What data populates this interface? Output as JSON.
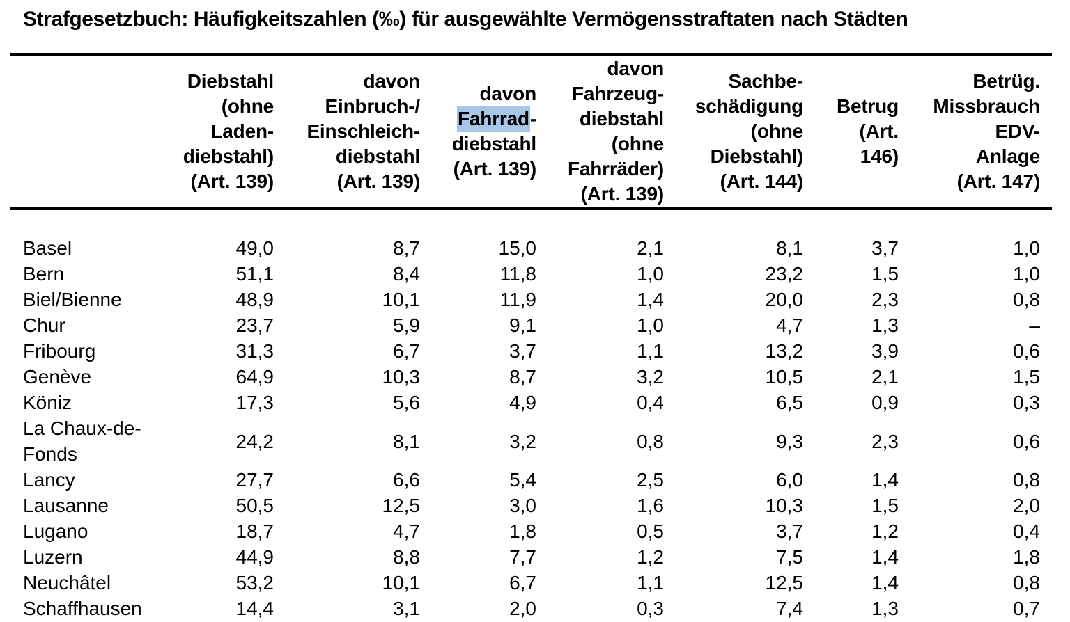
{
  "title": "Strafgesetzbuch: Häufigkeitszahlen (‰) für ausgewählte Vermögensstraftaten nach Städten",
  "highlight_color": "#a8c7e8",
  "table": {
    "unit": "‰",
    "columns": [
      {
        "id": "city",
        "lines": []
      },
      {
        "id": "diebstahl",
        "lines": [
          "Diebstahl",
          "(ohne",
          "Laden-",
          "diebstahl)",
          "(Art. 139)"
        ]
      },
      {
        "id": "einbruch-einschleich-diebstahl",
        "lines": [
          "davon",
          "Einbruch-/",
          "Einschleich-",
          "diebstahl",
          "(Art. 139)"
        ]
      },
      {
        "id": "fahrrad-diebstahl",
        "lines": [
          "davon",
          [
            {
              "text": "Fahrrad",
              "highlight": true
            },
            {
              "text": "-"
            }
          ],
          "diebstahl",
          "(Art. 139)"
        ]
      },
      {
        "id": "fahrzeug-diebstahl",
        "lines": [
          "davon",
          "Fahrzeug-",
          "diebstahl",
          "(ohne",
          "Fahrräder)",
          "(Art. 139)"
        ]
      },
      {
        "id": "sachbeschaedigung",
        "lines": [
          "Sachbe-",
          "schädigung",
          "(ohne",
          "Diebstahl)",
          "(Art. 144)"
        ]
      },
      {
        "id": "betrug",
        "lines": [
          "Betrug",
          "(Art.",
          "146)"
        ]
      },
      {
        "id": "betrug-missbrauch-edv",
        "lines": [
          "Betrüg.",
          "Missbrauch",
          "EDV-",
          "Anlage",
          "(Art. 147)"
        ]
      }
    ],
    "rows": [
      {
        "city": "Basel",
        "values": [
          "49,0",
          "8,7",
          "15,0",
          "2,1",
          "8,1",
          "3,7",
          "1,0"
        ]
      },
      {
        "city": "Bern",
        "values": [
          "51,1",
          "8,4",
          "11,8",
          "1,0",
          "23,2",
          "1,5",
          "1,0"
        ]
      },
      {
        "city": "Biel/Bienne",
        "values": [
          "48,9",
          "10,1",
          "11,9",
          "1,4",
          "20,0",
          "2,3",
          "0,8"
        ]
      },
      {
        "city": "Chur",
        "values": [
          "23,7",
          "5,9",
          "9,1",
          "1,0",
          "4,7",
          "1,3",
          "–"
        ]
      },
      {
        "city": "Fribourg",
        "values": [
          "31,3",
          "6,7",
          "3,7",
          "1,1",
          "13,2",
          "3,9",
          "0,6"
        ]
      },
      {
        "city": "Genève",
        "values": [
          "64,9",
          "10,3",
          "8,7",
          "3,2",
          "10,5",
          "2,1",
          "1,5"
        ]
      },
      {
        "city": "Köniz",
        "values": [
          "17,3",
          "5,6",
          "4,9",
          "0,4",
          "6,5",
          "0,9",
          "0,3"
        ]
      },
      {
        "city": "La Chaux-de-Fonds",
        "values": [
          "24,2",
          "8,1",
          "3,2",
          "0,8",
          "9,3",
          "2,3",
          "0,6"
        ]
      },
      {
        "city": "Lancy",
        "values": [
          "27,7",
          "6,6",
          "5,4",
          "2,5",
          "6,0",
          "1,4",
          "0,8"
        ]
      },
      {
        "city": "Lausanne",
        "values": [
          "50,5",
          "12,5",
          "3,0",
          "1,6",
          "10,3",
          "1,5",
          "2,0"
        ]
      },
      {
        "city": "Lugano",
        "values": [
          "18,7",
          "4,7",
          "1,8",
          "0,5",
          "3,7",
          "1,2",
          "0,4"
        ]
      },
      {
        "city": "Luzern",
        "values": [
          "44,9",
          "8,8",
          "7,7",
          "1,2",
          "7,5",
          "1,4",
          "1,8"
        ]
      },
      {
        "city": "Neuchâtel",
        "values": [
          "53,2",
          "10,1",
          "6,7",
          "1,1",
          "12,5",
          "1,4",
          "0,8"
        ]
      },
      {
        "city": "Schaffhausen",
        "values": [
          "14,4",
          "3,1",
          "2,0",
          "0,3",
          "7,4",
          "1,3",
          "0,7"
        ]
      }
    ]
  }
}
